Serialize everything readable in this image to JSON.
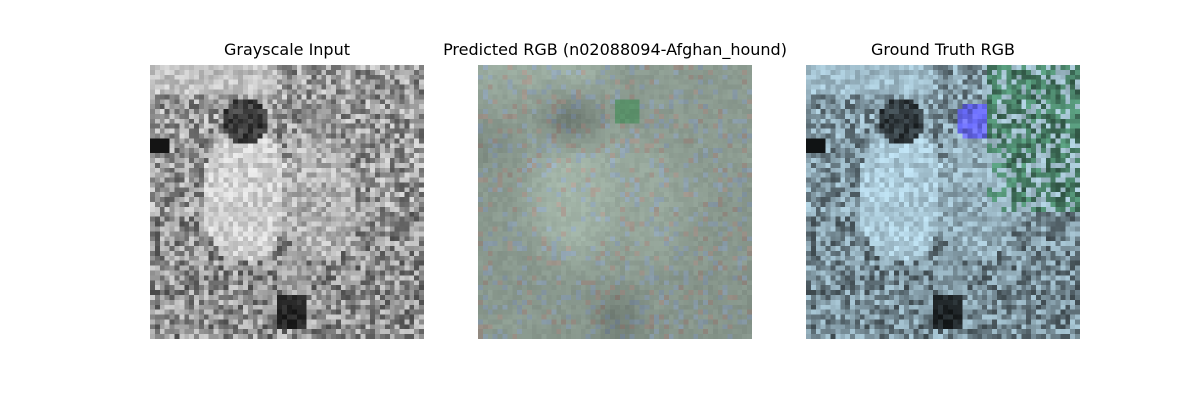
{
  "figure": {
    "panels": [
      {
        "title": "Grayscale Input",
        "image": {
          "kind": "grayscale",
          "description_colors": [
            "#f2f2f2",
            "#8c8c8c",
            "#1e1e1e"
          ]
        }
      },
      {
        "title": "Predicted RGB (n02088094-Afghan_hound)",
        "image": {
          "kind": "blurry-prediction",
          "description_colors": [
            "#8a9a8c",
            "#6f8775",
            "#a9aeb6",
            "#7f7268"
          ]
        }
      },
      {
        "title": "Ground Truth RGB",
        "image": {
          "kind": "color-tinted",
          "description_colors": [
            "#e8f3ff",
            "#6f95a6",
            "#2d4a3a",
            "#8f8fe8"
          ]
        }
      }
    ]
  }
}
